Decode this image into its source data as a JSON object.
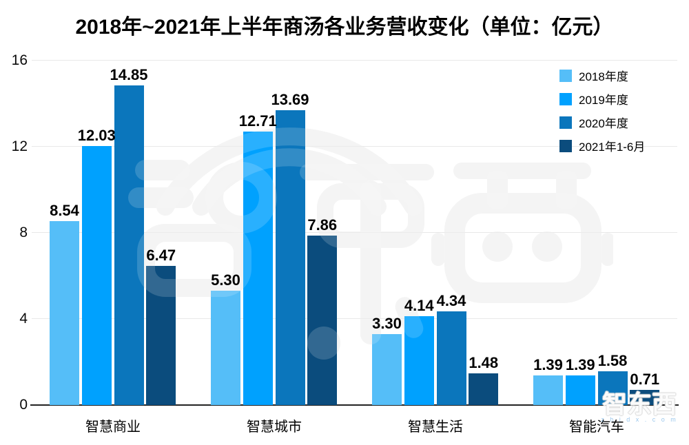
{
  "title": "2018年~2021年上半年商汤各业务营收变化（单位：亿元）",
  "chart_data": {
    "type": "bar",
    "categories": [
      "智慧商业",
      "智慧城市",
      "智慧生活",
      "智能汽车"
    ],
    "series": [
      {
        "name": "2018年度",
        "color": "#55bef8",
        "values": [
          8.54,
          5.3,
          3.3,
          1.39
        ]
      },
      {
        "name": "2019年度",
        "color": "#00a1fe",
        "values": [
          12.03,
          12.71,
          4.14,
          1.39
        ]
      },
      {
        "name": "2020年度",
        "color": "#0b76bc",
        "values": [
          14.85,
          13.69,
          4.34,
          1.58
        ]
      },
      {
        "name": "2021年1-6月",
        "color": "#0b4c7d",
        "values": [
          6.47,
          7.86,
          1.48,
          0.71
        ]
      }
    ],
    "value_label_format": "2-decimals",
    "ylim": [
      0,
      16
    ],
    "yticks": [
      0,
      4,
      8,
      12,
      16
    ],
    "grid": true,
    "legend_position": "top-right"
  },
  "watermark": {
    "corner_text": "智东西",
    "corner_domain": "z h i d x . c o m"
  },
  "colors": {
    "grid": "#e8e8e8",
    "axis": "#222222",
    "text": "#000000",
    "watermark_gray": "#f2f2f2"
  }
}
